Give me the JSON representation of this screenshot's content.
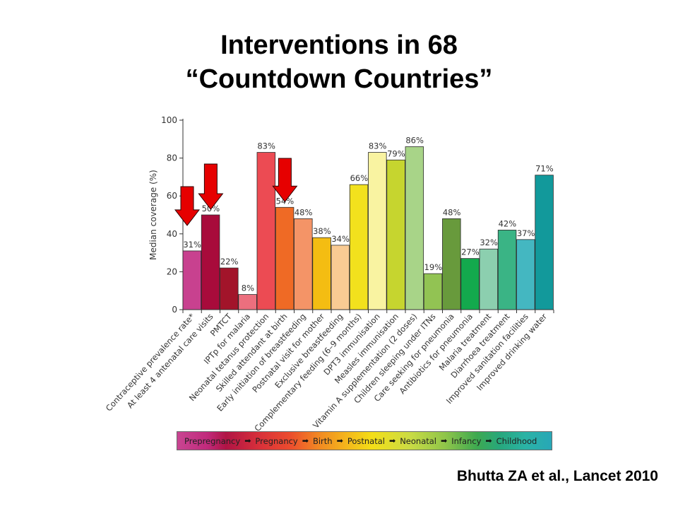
{
  "slide": {
    "title_line1": "Interventions in 68",
    "title_line2": "“Countdown Countries”",
    "citation": "Bhutta ZA et al., Lancet 2010"
  },
  "chart_data": {
    "type": "bar",
    "ylabel": "Median coverage (%)",
    "ylim": [
      0,
      100
    ],
    "yticks": [
      0,
      20,
      40,
      60,
      80,
      100
    ],
    "grid": false,
    "categories": [
      "Contraceptive prevalence rate*",
      "At least 4 antenatal care visits",
      "PMTCT",
      "IPTp for malaria",
      "Neonatal tetanus protection",
      "Skilled attendant at birth",
      "Early initiation of breastfeeding",
      "Postnatal visit for mother",
      "Exclusive breastfeeding",
      "Complementary feeding (6–9 months)",
      "DPT3 immunisation",
      "Measles immunisation",
      "Vitamin A supplementation (2 doses)",
      "Children sleeping under ITNs",
      "Care seeking for pneumonia",
      "Antibiotics for pneumonia",
      "Malaria treatment",
      "Diarrhoea treatment",
      "Improved sanitation facilities",
      "Improved drinking water"
    ],
    "values": [
      31,
      50,
      22,
      8,
      83,
      54,
      48,
      38,
      34,
      66,
      83,
      79,
      86,
      19,
      48,
      27,
      32,
      42,
      37,
      71
    ],
    "value_labels": [
      "31%",
      "50%",
      "22%",
      "8%",
      "83%",
      "54%",
      "48%",
      "38%",
      "34%",
      "66%",
      "83%",
      "79%",
      "86%",
      "19%",
      "48%",
      "27%",
      "32%",
      "42%",
      "37%",
      "71%"
    ],
    "bar_colors": [
      "#c8418f",
      "#a80b3b",
      "#a2142a",
      "#ec6f7e",
      "#ec4b53",
      "#ef6a25",
      "#f49467",
      "#f4bd12",
      "#f9cb93",
      "#f2e11d",
      "#f9f3a1",
      "#c6d52f",
      "#a8d488",
      "#92c353",
      "#689a3c",
      "#13a94d",
      "#8ccfaf",
      "#3ab485",
      "#44b7c1",
      "#12999b"
    ],
    "highlighted_indices": [
      0,
      1,
      5
    ],
    "highlight_color": "#e60000",
    "continuum": [
      "Prepregnancy",
      "Pregnancy",
      "Birth",
      "Postnatal",
      "Neonatal",
      "Infancy",
      "Childhood"
    ]
  }
}
